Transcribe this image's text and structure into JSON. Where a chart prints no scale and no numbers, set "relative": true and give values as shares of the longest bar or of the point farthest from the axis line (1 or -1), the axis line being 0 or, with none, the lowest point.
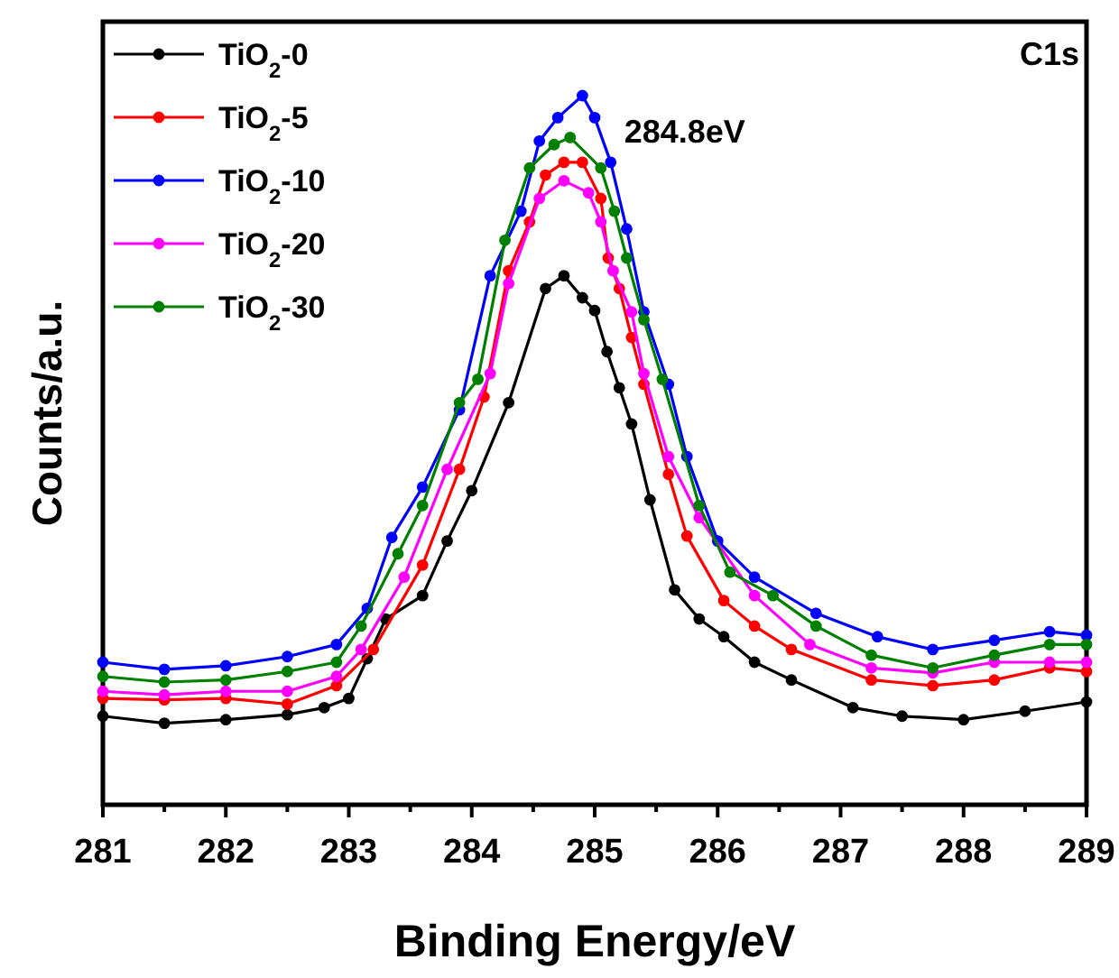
{
  "chart_data": {
    "type": "line",
    "relative": true,
    "xlabel": "Binding Energy/eV",
    "ylabel": "Counts/a.u.",
    "xlim": [
      281,
      289
    ],
    "xticks": [
      281,
      {
        "value": 281.5,
        "label": null
      },
      282,
      {
        "value": 282.5,
        "label": null
      },
      283,
      {
        "value": 283.5,
        "label": null
      },
      284,
      {
        "value": 284.5,
        "label": null
      },
      285,
      {
        "value": 285.5,
        "label": null
      },
      286,
      {
        "value": 286.5,
        "label": null
      },
      287,
      {
        "value": 287.5,
        "label": null
      },
      288,
      {
        "value": 288.5,
        "label": null
      },
      289
    ],
    "legend": "top left",
    "marker": "circle",
    "line_style": "solid",
    "grid": false,
    "annotations": [
      "C1s",
      {
        "text": "284.8eV",
        "x": 284.8,
        "y": 1
      }
    ],
    "series": [
      {
        "name": "TiO$_{2}$-0",
        "color": "#000000",
        "x": [
          281.0,
          281.5,
          282.0,
          282.5,
          282.8,
          283.0,
          283.15,
          283.3,
          283.6,
          283.8,
          284.0,
          284.3,
          284.6,
          284.75,
          284.9,
          285.0,
          285.1,
          285.2,
          285.3,
          285.45,
          285.65,
          285.85,
          286.05,
          286.3,
          286.6,
          287.1,
          287.5,
          288.0,
          288.5,
          289.0
        ],
        "values": [
          0.125,
          0.115,
          0.12,
          0.127,
          0.137,
          0.15,
          0.206,
          0.262,
          0.295,
          0.372,
          0.443,
          0.567,
          0.728,
          0.746,
          0.715,
          0.697,
          0.639,
          0.588,
          0.537,
          0.43,
          0.303,
          0.262,
          0.237,
          0.201,
          0.176,
          0.137,
          0.125,
          0.12,
          0.132,
          0.145
        ]
      },
      {
        "name": "TiO$_{2}$-5",
        "color": "#ff0000",
        "x": [
          281.0,
          281.5,
          282.0,
          282.5,
          282.9,
          283.2,
          283.6,
          283.9,
          284.1,
          284.3,
          284.47,
          284.6,
          284.75,
          284.9,
          285.05,
          285.11,
          285.2,
          285.3,
          285.4,
          285.6,
          285.75,
          286.05,
          286.3,
          286.6,
          287.25,
          287.75,
          288.25,
          288.7,
          289.0
        ],
        "values": [
          0.15,
          0.148,
          0.15,
          0.142,
          0.168,
          0.219,
          0.338,
          0.473,
          0.575,
          0.753,
          0.822,
          0.888,
          0.906,
          0.906,
          0.855,
          0.771,
          0.728,
          0.659,
          0.593,
          0.466,
          0.379,
          0.288,
          0.252,
          0.219,
          0.176,
          0.168,
          0.176,
          0.193,
          0.188
        ]
      },
      {
        "name": "TiO$_{2}$-10",
        "color": "#0000ff",
        "x": [
          281.0,
          281.5,
          282.0,
          282.5,
          282.9,
          283.15,
          283.35,
          283.6,
          283.9,
          284.15,
          284.4,
          284.55,
          284.7,
          284.9,
          285.0,
          285.13,
          285.26,
          285.4,
          285.6,
          285.75,
          286.0,
          286.3,
          286.8,
          287.3,
          287.75,
          288.25,
          288.7,
          289.0
        ],
        "values": [
          0.201,
          0.191,
          0.196,
          0.209,
          0.226,
          0.277,
          0.377,
          0.448,
          0.557,
          0.746,
          0.837,
          0.936,
          0.969,
          1.0,
          0.969,
          0.906,
          0.812,
          0.695,
          0.593,
          0.491,
          0.372,
          0.321,
          0.27,
          0.237,
          0.219,
          0.232,
          0.244,
          0.239
        ]
      },
      {
        "name": "TiO$_{2}$-20",
        "color": "#ff00ff",
        "x": [
          281.0,
          281.5,
          282.0,
          282.5,
          282.9,
          283.1,
          283.45,
          283.8,
          284.15,
          284.3,
          284.55,
          284.75,
          284.95,
          285.05,
          285.15,
          285.3,
          285.4,
          285.6,
          285.85,
          286.3,
          286.75,
          287.25,
          287.75,
          288.25,
          288.7,
          289.0
        ],
        "values": [
          0.16,
          0.155,
          0.16,
          0.16,
          0.181,
          0.219,
          0.321,
          0.473,
          0.608,
          0.735,
          0.855,
          0.88,
          0.863,
          0.822,
          0.753,
          0.695,
          0.608,
          0.491,
          0.405,
          0.295,
          0.226,
          0.193,
          0.186,
          0.201,
          0.201,
          0.201
        ]
      },
      {
        "name": "TiO$_{2}$-30",
        "color": "#008000",
        "x": [
          281.0,
          281.5,
          282.0,
          282.5,
          282.9,
          283.1,
          283.4,
          283.6,
          283.9,
          284.05,
          284.27,
          284.47,
          284.67,
          284.8,
          285.05,
          285.16,
          285.26,
          285.4,
          285.55,
          285.85,
          286.1,
          286.45,
          286.8,
          287.25,
          287.75,
          288.25,
          288.7,
          289.0
        ],
        "values": [
          0.181,
          0.173,
          0.176,
          0.188,
          0.201,
          0.252,
          0.354,
          0.422,
          0.567,
          0.6,
          0.796,
          0.898,
          0.931,
          0.941,
          0.898,
          0.837,
          0.771,
          0.684,
          0.6,
          0.422,
          0.328,
          0.295,
          0.252,
          0.211,
          0.193,
          0.211,
          0.226,
          0.226
        ]
      }
    ]
  }
}
